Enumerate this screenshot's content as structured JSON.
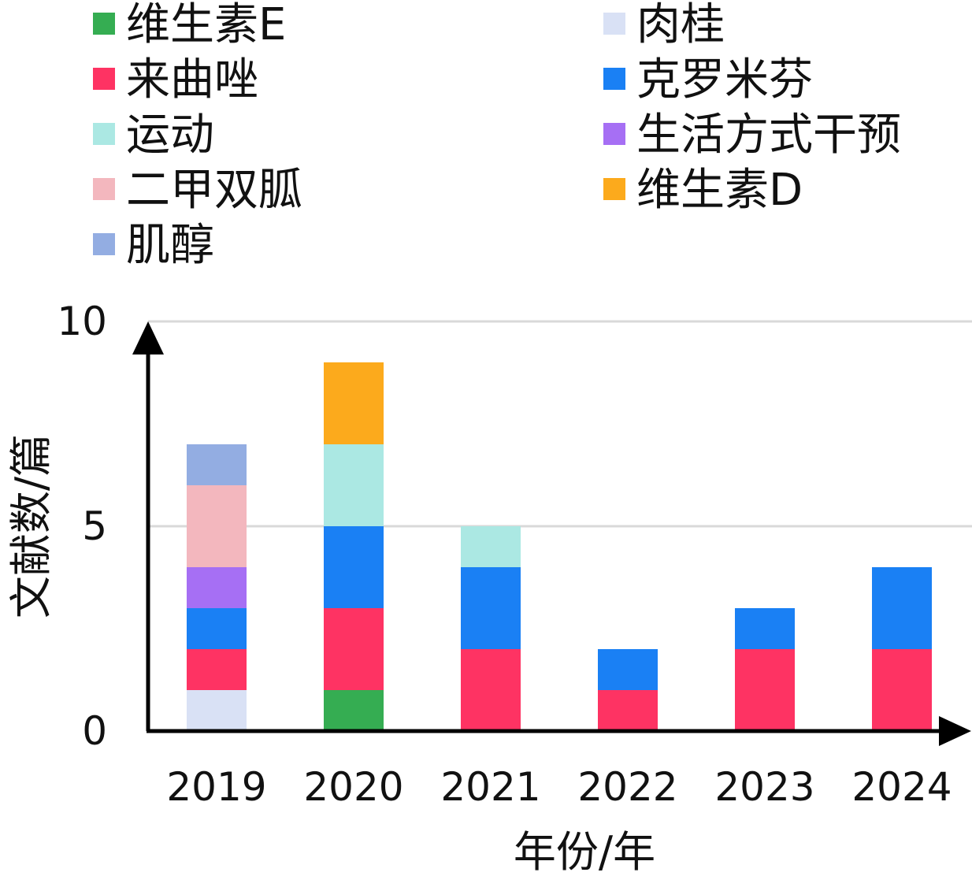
{
  "chart_data": {
    "type": "bar",
    "stacked": true,
    "title": "",
    "xlabel": "年份/年",
    "ylabel": "文献数/篇",
    "ylim": [
      0,
      10
    ],
    "yticks": [
      0,
      5,
      10
    ],
    "grid": true,
    "legend_position": "top",
    "categories": [
      "2019",
      "2020",
      "2021",
      "2022",
      "2023",
      "2024"
    ],
    "series": [
      {
        "name": "肉桂",
        "color": "#d9e1f5",
        "values": [
          1,
          0,
          0,
          0,
          0,
          0
        ]
      },
      {
        "name": "维生素E",
        "color": "#35ad52",
        "values": [
          0,
          1,
          0,
          0,
          0,
          0
        ]
      },
      {
        "name": "来曲唑",
        "color": "#fe3363",
        "values": [
          1,
          2,
          2,
          1,
          2,
          2
        ]
      },
      {
        "name": "克罗米芬",
        "color": "#1a80f4",
        "values": [
          1,
          2,
          2,
          1,
          1,
          2
        ]
      },
      {
        "name": "生活方式干预",
        "color": "#a66ff4",
        "values": [
          1,
          0,
          0,
          0,
          0,
          0
        ]
      },
      {
        "name": "二甲双胍",
        "color": "#f3b7be",
        "values": [
          2,
          0,
          0,
          0,
          0,
          0
        ]
      },
      {
        "name": "肌醇",
        "color": "#93ade2",
        "values": [
          1,
          0,
          0,
          0,
          0,
          0
        ]
      },
      {
        "name": "运动",
        "color": "#abe8e3",
        "values": [
          0,
          2,
          1,
          0,
          0,
          0
        ]
      },
      {
        "name": "维生素D",
        "color": "#fcaa1c",
        "values": [
          0,
          2,
          0,
          0,
          0,
          0
        ]
      }
    ],
    "legend_order": [
      "维生素E",
      "肉桂",
      "来曲唑",
      "克罗米芬",
      "运动",
      "生活方式干预",
      "二甲双胍",
      "维生素D",
      "肌醇"
    ]
  }
}
